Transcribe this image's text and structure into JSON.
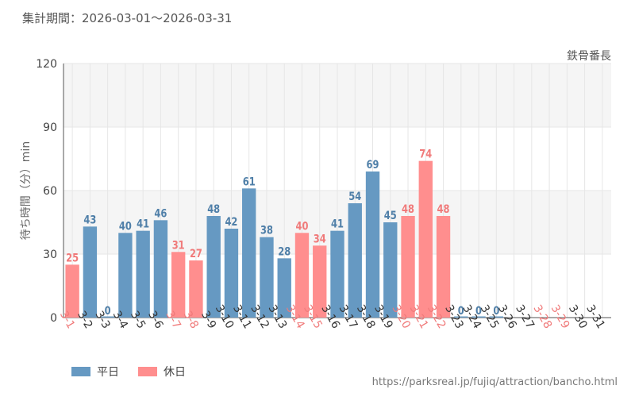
{
  "header": {
    "period_label": "集計期間：2026-03-01〜2026-03-31",
    "attraction_name": "鉄骨番長"
  },
  "footer": {
    "url": "https://parksreal.jp/fujiq/attraction/bancho.html"
  },
  "colors": {
    "weekday": "#6699c2",
    "holiday": "#ff8e8e",
    "weekday_text": "#4f7fa8",
    "holiday_text": "#f07a7a",
    "band": "#f5f5f5",
    "grid": "#e6e6e6"
  },
  "chart_data": {
    "type": "bar",
    "title": "集計期間：2026-03-01〜2026-03-31",
    "subtitle": "鉄骨番長",
    "xlabel": "",
    "ylabel": "待ち時間（分）min",
    "ylim": [
      0,
      120
    ],
    "yticks": [
      0,
      30,
      60,
      90,
      120
    ],
    "categories": [
      "3-1",
      "3-2",
      "3-3",
      "3-4",
      "3-5",
      "3-6",
      "3-7",
      "3-8",
      "3-9",
      "3-10",
      "3-11",
      "3-12",
      "3-13",
      "3-14",
      "3-15",
      "3-16",
      "3-17",
      "3-18",
      "3-19",
      "3-20",
      "3-21",
      "3-22",
      "3-23",
      "3-24",
      "3-25",
      "3-26",
      "3-27",
      "3-28",
      "3-29",
      "3-30",
      "3-31"
    ],
    "values": [
      25,
      43,
      0,
      40,
      41,
      46,
      31,
      27,
      48,
      42,
      61,
      38,
      28,
      40,
      34,
      41,
      54,
      69,
      45,
      48,
      74,
      48,
      0,
      0,
      0,
      null,
      null,
      null,
      null,
      null,
      null
    ],
    "day_type": [
      "holiday",
      "weekday",
      "weekday",
      "weekday",
      "weekday",
      "weekday",
      "holiday",
      "holiday",
      "weekday",
      "weekday",
      "weekday",
      "weekday",
      "weekday",
      "holiday",
      "holiday",
      "weekday",
      "weekday",
      "weekday",
      "weekday",
      "holiday",
      "holiday",
      "holiday",
      "weekday",
      "weekday",
      "weekday",
      "weekday",
      "weekday",
      "holiday",
      "holiday",
      "weekday",
      "weekday"
    ],
    "legend": [
      {
        "name": "平日",
        "key": "weekday"
      },
      {
        "name": "休日",
        "key": "holiday"
      }
    ],
    "legend_position": "bottom-left",
    "grid": true
  }
}
